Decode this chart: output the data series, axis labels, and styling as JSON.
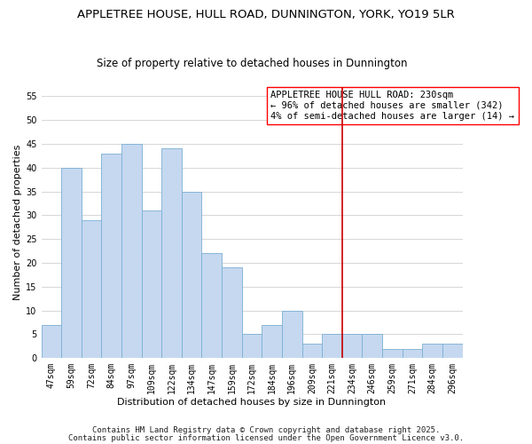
{
  "title": "APPLETREE HOUSE, HULL ROAD, DUNNINGTON, YORK, YO19 5LR",
  "subtitle": "Size of property relative to detached houses in Dunnington",
  "xlabel": "Distribution of detached houses by size in Dunnington",
  "ylabel": "Number of detached properties",
  "bar_labels": [
    "47sqm",
    "59sqm",
    "72sqm",
    "84sqm",
    "97sqm",
    "109sqm",
    "122sqm",
    "134sqm",
    "147sqm",
    "159sqm",
    "172sqm",
    "184sqm",
    "196sqm",
    "209sqm",
    "221sqm",
    "234sqm",
    "246sqm",
    "259sqm",
    "271sqm",
    "284sqm",
    "296sqm"
  ],
  "bar_heights": [
    7,
    40,
    29,
    43,
    45,
    31,
    44,
    35,
    22,
    19,
    5,
    7,
    10,
    3,
    5,
    5,
    5,
    2,
    2,
    3,
    3
  ],
  "bar_color": "#c5d8f0",
  "bar_edge_color": "#7bafd4",
  "vline_color": "#cc0000",
  "vline_index": 14.5,
  "ylim": [
    0,
    57
  ],
  "yticks": [
    0,
    5,
    10,
    15,
    20,
    25,
    30,
    35,
    40,
    45,
    50,
    55
  ],
  "annotation_title": "APPLETREE HOUSE HULL ROAD: 230sqm",
  "annotation_line1": "← 96% of detached houses are smaller (342)",
  "annotation_line2": "4% of semi-detached houses are larger (14) →",
  "footnote1": "Contains HM Land Registry data © Crown copyright and database right 2025.",
  "footnote2": "Contains public sector information licensed under the Open Government Licence v3.0.",
  "background_color": "#ffffff",
  "grid_color": "#d0d0d0",
  "title_fontsize": 9.5,
  "subtitle_fontsize": 8.5,
  "axis_label_fontsize": 8,
  "tick_fontsize": 7,
  "annotation_fontsize": 7.5,
  "footnote_fontsize": 6.5
}
